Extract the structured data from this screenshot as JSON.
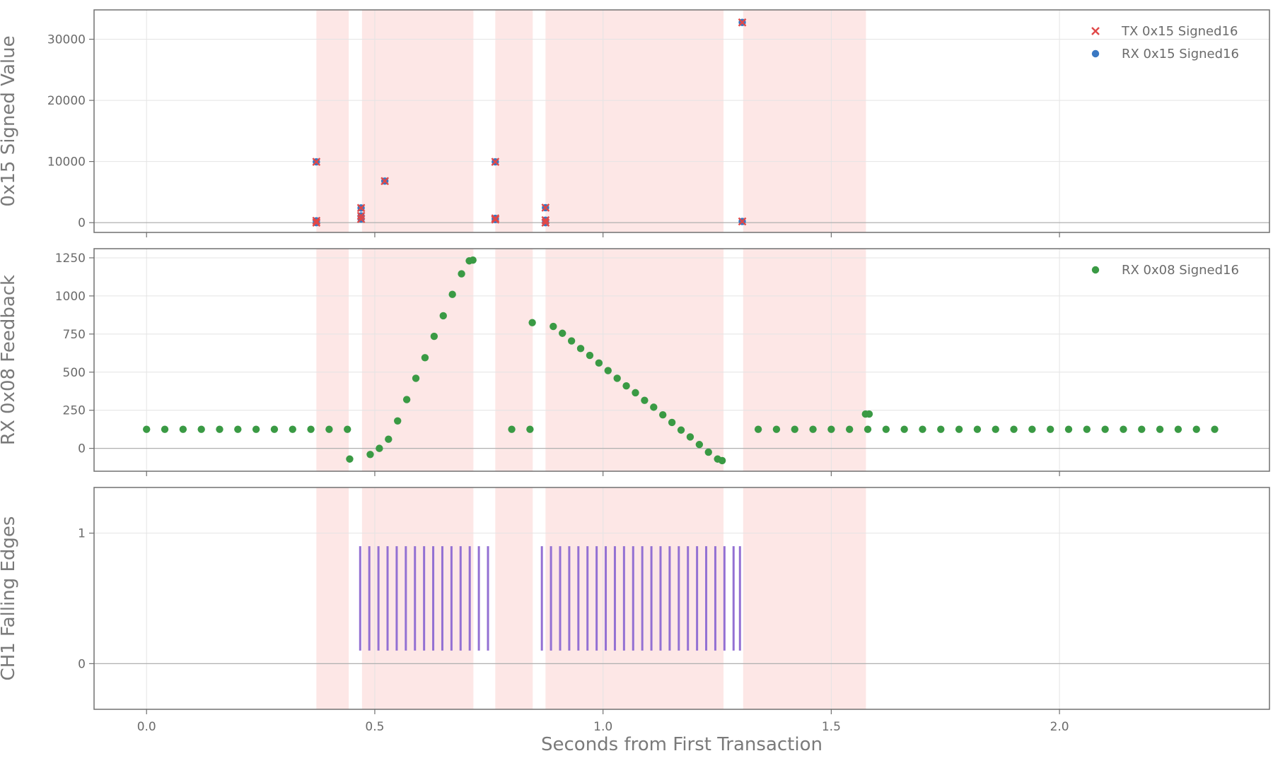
{
  "chart_data": [
    {
      "type": "scatter",
      "ylabel": "0x15 Signed Value",
      "xlim": [
        -0.115,
        2.46
      ],
      "ylim": [
        -1600,
        34800
      ],
      "yticks": [
        0,
        10000,
        20000,
        30000
      ],
      "ytick_labels": [
        "0",
        "10000",
        "20000",
        "30000"
      ],
      "zero_line": true,
      "grid": true,
      "legend_position": "top-right",
      "series": [
        {
          "name": "TX 0x15 Signed16",
          "marker": "x",
          "color": "#e04848",
          "points": [
            [
              0.372,
              0
            ],
            [
              0.372,
              300
            ],
            [
              0.372,
              9950
            ],
            [
              0.47,
              600
            ],
            [
              0.47,
              1100
            ],
            [
              0.47,
              2400
            ],
            [
              0.522,
              6800
            ],
            [
              0.764,
              500
            ],
            [
              0.764,
              700
            ],
            [
              0.764,
              9950
            ],
            [
              0.874,
              0
            ],
            [
              0.874,
              400
            ],
            [
              0.874,
              2450
            ],
            [
              1.305,
              200
            ],
            [
              1.305,
              32750
            ]
          ]
        },
        {
          "name": "RX 0x15 Signed16",
          "marker": "o",
          "color": "#3a78c2",
          "points": [
            [
              0.372,
              0
            ],
            [
              0.372,
              300
            ],
            [
              0.372,
              9950
            ],
            [
              0.47,
              600
            ],
            [
              0.47,
              1100
            ],
            [
              0.47,
              2400
            ],
            [
              0.522,
              6800
            ],
            [
              0.764,
              500
            ],
            [
              0.764,
              700
            ],
            [
              0.764,
              9950
            ],
            [
              0.874,
              0
            ],
            [
              0.874,
              400
            ],
            [
              0.874,
              2450
            ],
            [
              1.305,
              200
            ],
            [
              1.305,
              32750
            ]
          ]
        }
      ]
    },
    {
      "type": "scatter",
      "ylabel": "RX 0x08 Feedback",
      "xlim": [
        -0.115,
        2.46
      ],
      "ylim": [
        -150,
        1310
      ],
      "yticks": [
        0,
        250,
        500,
        750,
        1000,
        1250
      ],
      "ytick_labels": [
        "0",
        "250",
        "500",
        "750",
        "1000",
        "1250"
      ],
      "zero_line": true,
      "grid": true,
      "legend_position": "top-right",
      "series": [
        {
          "name": "RX 0x08 Signed16",
          "marker": "o",
          "color": "#3a9a44",
          "points": [
            [
              0.0,
              125
            ],
            [
              0.04,
              125
            ],
            [
              0.08,
              125
            ],
            [
              0.12,
              125
            ],
            [
              0.16,
              125
            ],
            [
              0.2,
              125
            ],
            [
              0.24,
              125
            ],
            [
              0.28,
              125
            ],
            [
              0.32,
              125
            ],
            [
              0.36,
              125
            ],
            [
              0.4,
              125
            ],
            [
              0.44,
              125
            ],
            [
              0.445,
              -70
            ],
            [
              0.49,
              -40
            ],
            [
              0.51,
              0
            ],
            [
              0.53,
              60
            ],
            [
              0.55,
              180
            ],
            [
              0.57,
              320
            ],
            [
              0.59,
              460
            ],
            [
              0.61,
              595
            ],
            [
              0.63,
              735
            ],
            [
              0.65,
              870
            ],
            [
              0.67,
              1010
            ],
            [
              0.69,
              1145
            ],
            [
              0.707,
              1230
            ],
            [
              0.715,
              1235
            ],
            [
              0.8,
              125
            ],
            [
              0.84,
              125
            ],
            [
              0.845,
              825
            ],
            [
              0.891,
              800
            ],
            [
              0.911,
              755
            ],
            [
              0.931,
              705
            ],
            [
              0.951,
              655
            ],
            [
              0.971,
              610
            ],
            [
              0.991,
              560
            ],
            [
              1.011,
              510
            ],
            [
              1.031,
              460
            ],
            [
              1.051,
              410
            ],
            [
              1.071,
              365
            ],
            [
              1.091,
              315
            ],
            [
              1.111,
              270
            ],
            [
              1.131,
              220
            ],
            [
              1.151,
              170
            ],
            [
              1.171,
              120
            ],
            [
              1.191,
              75
            ],
            [
              1.211,
              25
            ],
            [
              1.231,
              -25
            ],
            [
              1.251,
              -70
            ],
            [
              1.261,
              -80
            ],
            [
              1.34,
              125
            ],
            [
              1.38,
              125
            ],
            [
              1.42,
              125
            ],
            [
              1.46,
              125
            ],
            [
              1.5,
              125
            ],
            [
              1.54,
              125
            ],
            [
              1.575,
              225
            ],
            [
              1.583,
              225
            ],
            [
              1.58,
              125
            ],
            [
              1.62,
              125
            ],
            [
              1.66,
              125
            ],
            [
              1.7,
              125
            ],
            [
              1.74,
              125
            ],
            [
              1.78,
              125
            ],
            [
              1.82,
              125
            ],
            [
              1.86,
              125
            ],
            [
              1.9,
              125
            ],
            [
              1.94,
              125
            ],
            [
              1.98,
              125
            ],
            [
              2.02,
              125
            ],
            [
              2.06,
              125
            ],
            [
              2.1,
              125
            ],
            [
              2.14,
              125
            ],
            [
              2.18,
              125
            ],
            [
              2.22,
              125
            ],
            [
              2.26,
              125
            ],
            [
              2.3,
              125
            ],
            [
              2.34,
              125
            ]
          ]
        }
      ]
    },
    {
      "type": "eventplot",
      "ylabel": "CH1 Falling Edges",
      "xlabel": "Seconds from First Transaction",
      "xlim": [
        -0.115,
        2.46
      ],
      "ylim": [
        -0.35,
        1.35
      ],
      "yticks": [
        0,
        1
      ],
      "ytick_labels": [
        "0",
        "1"
      ],
      "xticks": [
        0.0,
        0.5,
        1.0,
        1.5,
        2.0
      ],
      "xtick_labels": [
        "0.0",
        "0.5",
        "1.0",
        "1.5",
        "2.0"
      ],
      "zero_line": true,
      "grid": true,
      "line_range": [
        0.1,
        0.9
      ],
      "color": "#9370d3",
      "events": [
        0.468,
        0.488,
        0.508,
        0.528,
        0.548,
        0.568,
        0.588,
        0.608,
        0.628,
        0.648,
        0.668,
        0.688,
        0.708,
        0.728,
        0.748,
        0.866,
        0.886,
        0.906,
        0.926,
        0.946,
        0.966,
        0.986,
        1.006,
        1.026,
        1.046,
        1.066,
        1.086,
        1.106,
        1.126,
        1.146,
        1.166,
        1.186,
        1.206,
        1.226,
        1.246,
        1.266,
        1.286,
        1.3
      ]
    }
  ],
  "shaded_spans": [
    [
      0.372,
      0.443
    ],
    [
      0.472,
      0.716
    ],
    [
      0.764,
      0.846
    ],
    [
      0.874,
      1.264
    ],
    [
      1.307,
      1.576
    ]
  ],
  "colors": {
    "span": "#fde7e6",
    "grid": "#e4e4e4",
    "zero_line": "#b0b0b0",
    "frame": "#707070"
  }
}
